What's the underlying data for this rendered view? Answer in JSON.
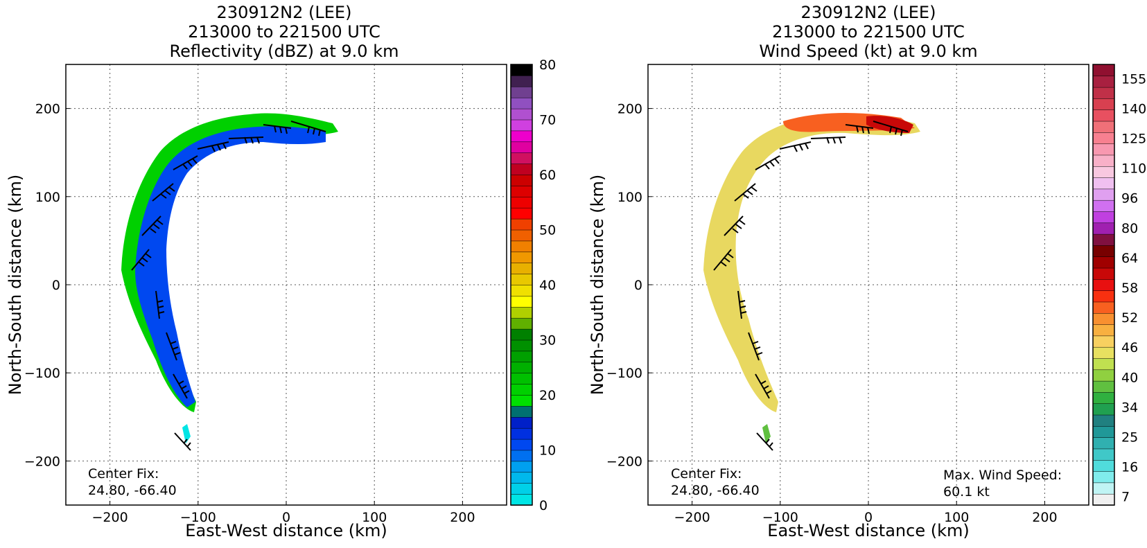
{
  "chart_data": [
    {
      "type": "heatmap",
      "title_lines": [
        "230912N2 (LEE)",
        "213000 to 221500 UTC",
        "Reflectivity (dBZ) at 9.0 km"
      ],
      "xlabel": "East-West distance (km)",
      "ylabel": "North-South distance (km)",
      "xlim": [
        -250,
        250
      ],
      "ylim": [
        -250,
        250
      ],
      "xticks": [
        -200,
        -100,
        0,
        100,
        200
      ],
      "yticks": [
        -200,
        -100,
        0,
        100,
        200
      ],
      "grid": true,
      "colorbar": {
        "ticks": [
          "0",
          "10",
          "20",
          "30",
          "40",
          "50",
          "60",
          "70",
          "80"
        ],
        "colors": [
          "#00e5e5",
          "#00d0e8",
          "#00b8ec",
          "#00a0f0",
          "#0070f0",
          "#0048f0",
          "#0030e0",
          "#0020c8",
          "#007070",
          "#00e000",
          "#00d000",
          "#00c000",
          "#00b000",
          "#00a000",
          "#009000",
          "#008000",
          "#60b000",
          "#b0d000",
          "#ffff00",
          "#f0e000",
          "#e8c800",
          "#e8b000",
          "#f09800",
          "#f08000",
          "#f06000",
          "#f04000",
          "#ff0000",
          "#ee0000",
          "#dd0000",
          "#cc0000",
          "#c00020",
          "#d01060",
          "#e000a0",
          "#ee00cc",
          "#d040e0",
          "#b050d0",
          "#9050c0",
          "#704090",
          "#402050",
          "#000000"
        ]
      },
      "annotations": {
        "center_fix_label": "Center Fix:",
        "center_fix_value": "24.80, -66.40"
      },
      "band_fill": "#00cc00"
    },
    {
      "type": "heatmap",
      "title_lines": [
        "230912N2 (LEE)",
        "213000 to 221500 UTC",
        "Wind Speed (kt) at 9.0 km"
      ],
      "xlabel": "East-West distance (km)",
      "ylabel": "North-South distance (km)",
      "xlim": [
        -250,
        250
      ],
      "ylim": [
        -250,
        250
      ],
      "xticks": [
        -200,
        -100,
        0,
        100,
        200
      ],
      "yticks": [
        -200,
        -100,
        0,
        100,
        200
      ],
      "grid": true,
      "colorbar": {
        "ticks": [
          "7",
          "16",
          "25",
          "34",
          "40",
          "46",
          "52",
          "58",
          "64",
          "80",
          "96",
          "110",
          "125",
          "140",
          "155"
        ],
        "colors": [
          "#f0f0f0",
          "#c0f4f4",
          "#80ecec",
          "#50dcdc",
          "#40c8c8",
          "#30b0b0",
          "#209898",
          "#208080",
          "#20a050",
          "#30b040",
          "#60c040",
          "#90d040",
          "#c0e050",
          "#e8e060",
          "#f8d060",
          "#f8b040",
          "#f89030",
          "#f86020",
          "#f83010",
          "#e81010",
          "#c80808",
          "#a00000",
          "#780000",
          "#801040",
          "#a020b0",
          "#c040e0",
          "#d070f0",
          "#e0a0f0",
          "#f0c0f0",
          "#f8c8e0",
          "#f8b0c8",
          "#f898b0",
          "#f88090",
          "#f07078",
          "#e85060",
          "#d84050",
          "#c03048",
          "#a82040",
          "#901030"
        ]
      },
      "annotations": {
        "center_fix_label": "Center Fix:",
        "center_fix_value": "24.80, -66.40",
        "max_wind_label": "Max. Wind Speed:",
        "max_wind_value": "60.1 kt"
      },
      "band_fill": "#e8d860"
    }
  ]
}
